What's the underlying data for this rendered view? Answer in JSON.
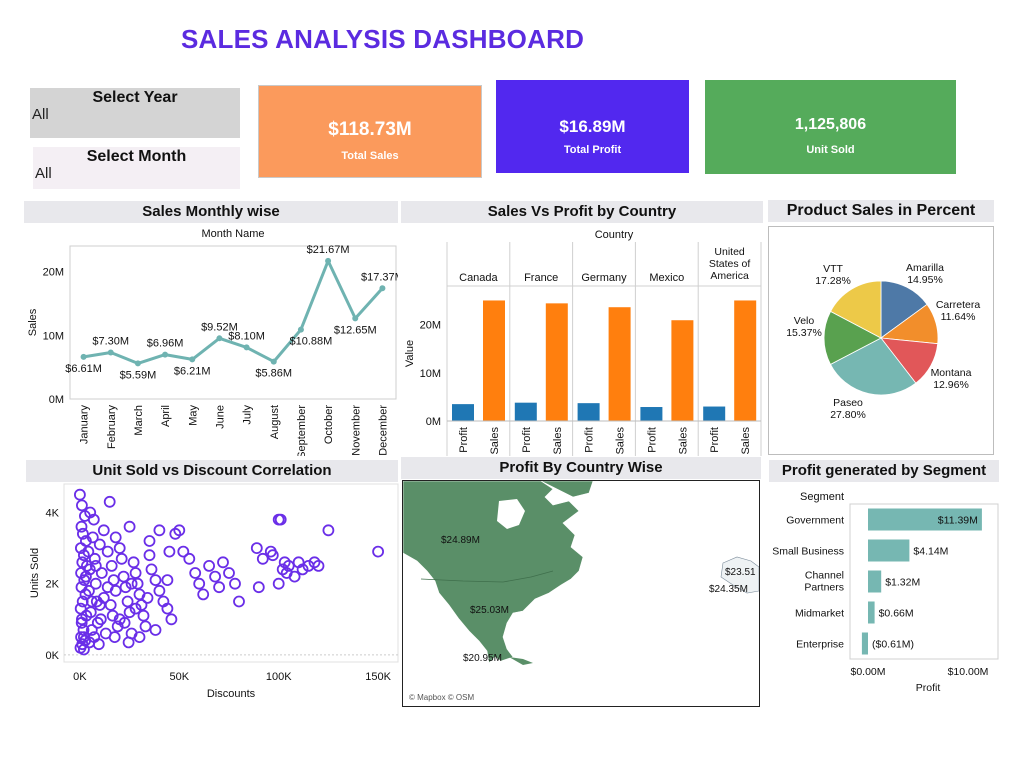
{
  "title": "SALES ANALYSIS DASHBOARD",
  "filters": {
    "year": {
      "label": "Select Year",
      "value": "All"
    },
    "month": {
      "label": "Select Month",
      "value": "All"
    }
  },
  "kpis": {
    "total_sales": {
      "value": "$118.73M",
      "label": "Total Sales",
      "color": "#fb9a5c"
    },
    "total_profit": {
      "value": "$16.89M",
      "label": "Total Profit",
      "color": "#5228ef"
    },
    "unit_sold": {
      "value": "1,125,806",
      "label": "Unit Sold",
      "color": "#55ab5b"
    }
  },
  "sections": {
    "monthly": "Sales Monthly wise",
    "country_bars": "Sales Vs Profit by Country",
    "pie": "Product Sales in Percent",
    "scatter": "Unit Sold vs Discount Correlation",
    "map": "Profit By Country Wise",
    "segment": "Profit generated by Segment"
  },
  "chart_data": [
    {
      "id": "monthly",
      "type": "line",
      "header": "Month Name",
      "ylabel": "Sales",
      "ylim": [
        0,
        24
      ],
      "yticks": [
        {
          "v": 0,
          "label": "0M"
        },
        {
          "v": 10,
          "label": "10M"
        },
        {
          "v": 20,
          "label": "20M"
        }
      ],
      "categories": [
        "January",
        "February",
        "March",
        "April",
        "May",
        "June",
        "July",
        "August",
        "September",
        "October",
        "November",
        "December"
      ],
      "values": [
        6.61,
        7.3,
        5.59,
        6.96,
        6.21,
        9.52,
        8.1,
        5.86,
        10.88,
        21.67,
        12.65,
        17.37
      ],
      "labels": [
        "$6.61M",
        "$7.30M",
        "$5.59M",
        "$6.96M",
        "$6.21M",
        "$9.52M",
        "$8.10M",
        "$5.86M",
        "$10.88M",
        "$21.67M",
        "$12.65M",
        "$17.37M"
      ],
      "color": "#6fb3b1"
    },
    {
      "id": "country_bars",
      "type": "bar",
      "header": "Country",
      "ylabel": "Value",
      "ylim": [
        0,
        28
      ],
      "yticks": [
        {
          "v": 0,
          "label": "0M"
        },
        {
          "v": 10,
          "label": "10M"
        },
        {
          "v": 20,
          "label": "20M"
        }
      ],
      "countries": [
        "Canada",
        "France",
        "Germany",
        "Mexico",
        "United States of America"
      ],
      "measures": [
        "Profit",
        "Sales"
      ],
      "series": [
        {
          "name": "Profit",
          "color": "#1f77b4",
          "values": [
            3.5,
            3.8,
            3.7,
            2.9,
            3.0
          ]
        },
        {
          "name": "Sales",
          "color": "#ff7f0e",
          "values": [
            25.0,
            24.4,
            23.6,
            20.9,
            25.0
          ]
        }
      ]
    },
    {
      "id": "pie",
      "type": "pie",
      "slices": [
        {
          "name": "Amarilla",
          "pct": 14.95,
          "label": "14.95%",
          "color": "#4e79a7"
        },
        {
          "name": "Carretera",
          "pct": 11.64,
          "label": "11.64%",
          "color": "#f28e2b"
        },
        {
          "name": "Montana",
          "pct": 12.96,
          "label": "12.96%",
          "color": "#e15759"
        },
        {
          "name": "Paseo",
          "pct": 27.8,
          "label": "27.80%",
          "color": "#76b7b2"
        },
        {
          "name": "Velo",
          "pct": 15.37,
          "label": "15.37%",
          "color": "#59a14f"
        },
        {
          "name": "VTT",
          "pct": 17.28,
          "label": "17.28%",
          "color": "#edc948"
        }
      ]
    },
    {
      "id": "scatter",
      "type": "scatter",
      "xlabel": "Discounts",
      "ylabel": "Units Sold",
      "xlim": [
        -8000,
        160000
      ],
      "ylim": [
        -200,
        4800
      ],
      "xticks": [
        {
          "v": 0,
          "label": "0K"
        },
        {
          "v": 50000,
          "label": "50K"
        },
        {
          "v": 100000,
          "label": "100K"
        },
        {
          "v": 150000,
          "label": "150K"
        }
      ],
      "yticks": [
        {
          "v": 0,
          "label": "0K"
        },
        {
          "v": 2000,
          "label": "2K"
        },
        {
          "v": 4000,
          "label": "4K"
        }
      ],
      "color": "#6a2ee8",
      "points": [
        [
          0,
          4500
        ],
        [
          1000,
          4200
        ],
        [
          2500,
          3900
        ],
        [
          800,
          3600
        ],
        [
          1500,
          3400
        ],
        [
          3000,
          3200
        ],
        [
          500,
          3000
        ],
        [
          2000,
          2800
        ],
        [
          1200,
          2600
        ],
        [
          3500,
          2500
        ],
        [
          600,
          2300
        ],
        [
          2200,
          2100
        ],
        [
          800,
          1900
        ],
        [
          2800,
          1700
        ],
        [
          1400,
          1500
        ],
        [
          400,
          1300
        ],
        [
          3200,
          1100
        ],
        [
          900,
          900
        ],
        [
          1800,
          700
        ],
        [
          600,
          500
        ],
        [
          2600,
          400
        ],
        [
          1200,
          300
        ],
        [
          300,
          200
        ],
        [
          2000,
          150
        ],
        [
          4200,
          2900
        ],
        [
          5000,
          2400
        ],
        [
          4500,
          1800
        ],
        [
          5500,
          1200
        ],
        [
          6000,
          700
        ],
        [
          4800,
          350
        ],
        [
          5200,
          4000
        ],
        [
          7000,
          3800
        ],
        [
          6500,
          3300
        ],
        [
          7500,
          2700
        ],
        [
          8000,
          2000
        ],
        [
          8500,
          1500
        ],
        [
          9000,
          900
        ],
        [
          7200,
          500
        ],
        [
          10000,
          3100
        ],
        [
          11000,
          2300
        ],
        [
          12000,
          1600
        ],
        [
          10500,
          1000
        ],
        [
          13000,
          600
        ],
        [
          9500,
          300
        ],
        [
          15000,
          4300
        ],
        [
          14000,
          2900
        ],
        [
          16000,
          2500
        ],
        [
          17000,
          2100
        ],
        [
          18000,
          1800
        ],
        [
          15500,
          1400
        ],
        [
          16500,
          1100
        ],
        [
          19000,
          800
        ],
        [
          17500,
          500
        ],
        [
          20000,
          3000
        ],
        [
          21000,
          2700
        ],
        [
          22000,
          2200
        ],
        [
          23000,
          1900
        ],
        [
          24000,
          1500
        ],
        [
          25000,
          1200
        ],
        [
          22500,
          900
        ],
        [
          26000,
          600
        ],
        [
          24500,
          350
        ],
        [
          27000,
          2600
        ],
        [
          28000,
          2300
        ],
        [
          29000,
          2000
        ],
        [
          30000,
          1700
        ],
        [
          31000,
          1400
        ],
        [
          32000,
          1100
        ],
        [
          33000,
          800
        ],
        [
          35000,
          2800
        ],
        [
          36000,
          2400
        ],
        [
          38000,
          2100
        ],
        [
          40000,
          1800
        ],
        [
          42000,
          1500
        ],
        [
          44000,
          1300
        ],
        [
          46000,
          1000
        ],
        [
          48000,
          3400
        ],
        [
          50000,
          3500
        ],
        [
          52000,
          2900
        ],
        [
          55000,
          2700
        ],
        [
          58000,
          2300
        ],
        [
          60000,
          2000
        ],
        [
          62000,
          1700
        ],
        [
          65000,
          2500
        ],
        [
          68000,
          2200
        ],
        [
          70000,
          1900
        ],
        [
          72000,
          2600
        ],
        [
          75000,
          2300
        ],
        [
          78000,
          2000
        ],
        [
          80000,
          1500
        ],
        [
          40000,
          3500
        ],
        [
          45000,
          2900
        ],
        [
          35000,
          3200
        ],
        [
          25000,
          3600
        ],
        [
          12000,
          3500
        ],
        [
          8000,
          2500
        ],
        [
          6000,
          1500
        ],
        [
          3000,
          2200
        ],
        [
          1000,
          1000
        ],
        [
          2000,
          500
        ],
        [
          20000,
          1000
        ],
        [
          30000,
          500
        ],
        [
          38000,
          700
        ],
        [
          28000,
          1300
        ],
        [
          14000,
          1900
        ],
        [
          10000,
          1400
        ],
        [
          18000,
          3300
        ],
        [
          26000,
          2000
        ],
        [
          34000,
          1600
        ],
        [
          44000,
          2100
        ],
        [
          96000,
          2900
        ],
        [
          100000,
          3800
        ],
        [
          101000,
          3800
        ],
        [
          103000,
          2600
        ],
        [
          105000,
          2500
        ],
        [
          108000,
          2200
        ],
        [
          110000,
          2600
        ],
        [
          112000,
          2400
        ],
        [
          115000,
          2500
        ],
        [
          118000,
          2600
        ],
        [
          120000,
          2500
        ],
        [
          125000,
          3500
        ],
        [
          150000,
          2900
        ],
        [
          92000,
          2700
        ],
        [
          90000,
          1900
        ],
        [
          100000,
          2000
        ],
        [
          89000,
          3000
        ],
        [
          102000,
          2400
        ],
        [
          97000,
          2800
        ],
        [
          104000,
          2300
        ]
      ]
    },
    {
      "id": "segment",
      "type": "bar",
      "orientation": "horizontal",
      "header": "Segment",
      "xlabel": "Profit",
      "xlim": [
        -1.0,
        13.0
      ],
      "xticks": [
        {
          "v": 0,
          "label": "$0.00M"
        },
        {
          "v": 10,
          "label": "$10.00M"
        }
      ],
      "color": "#76b7b2",
      "categories": [
        "Government",
        "Small Business",
        "Channel Partners",
        "Midmarket",
        "Enterprise"
      ],
      "values": [
        11.39,
        4.14,
        1.32,
        0.66,
        -0.61
      ],
      "labels": [
        "$11.39M",
        "$4.14M",
        "$1.32M",
        "$0.66M",
        "($0.61M)"
      ]
    }
  ],
  "map": {
    "labels": [
      {
        "country": "Canada",
        "text": "$24.89M"
      },
      {
        "country": "United States of America",
        "text": "$25.03M"
      },
      {
        "country": "Mexico",
        "text": "$20.95M"
      },
      {
        "country": "Germany",
        "text": "$23.51"
      },
      {
        "country": "France",
        "text": "$24.35M"
      }
    ],
    "attribution": "© Mapbox © OSM",
    "land_color": "#5a8f68"
  }
}
